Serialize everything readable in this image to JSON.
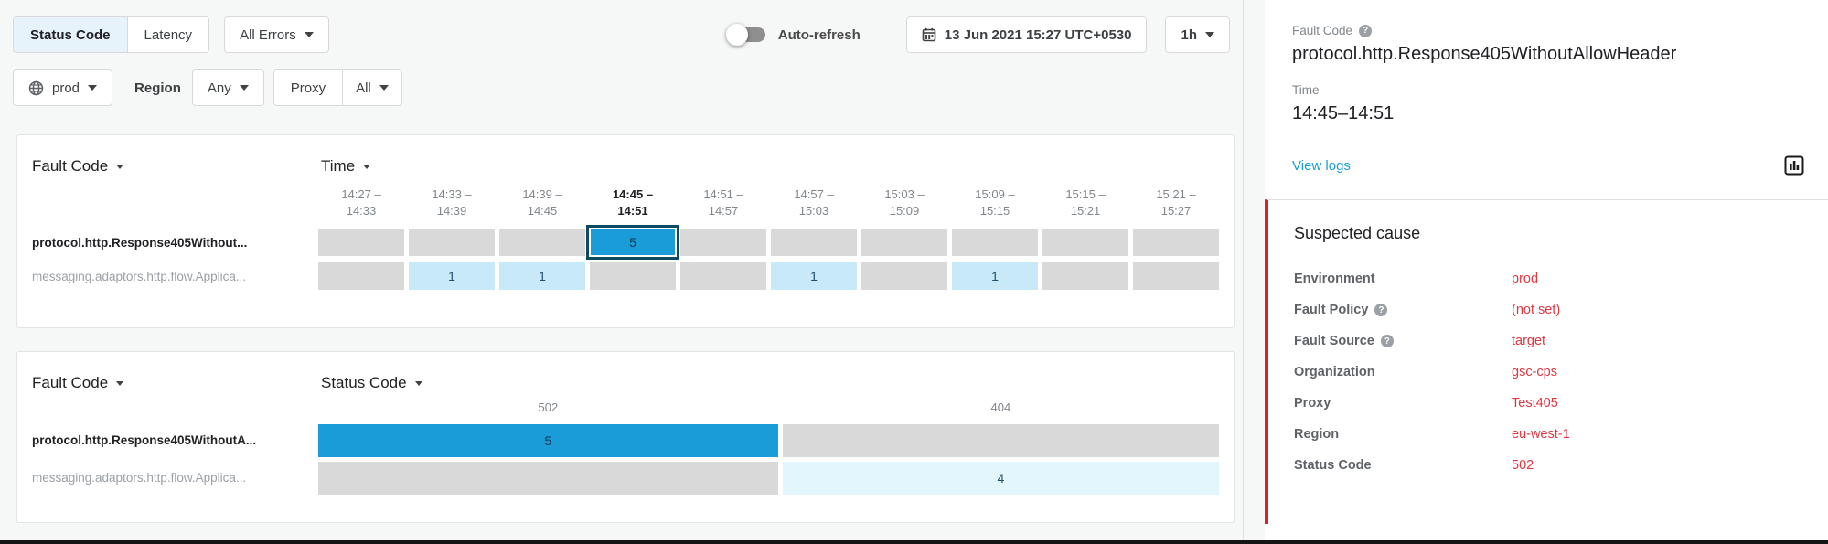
{
  "toolbar": {
    "metric_tabs": [
      {
        "label": "Status Code",
        "selected": true
      },
      {
        "label": "Latency",
        "selected": false
      }
    ],
    "errors_filter_label": "All Errors",
    "environment_value": "prod",
    "region_label": "Region",
    "region_value": "Any",
    "proxy_label": "Proxy",
    "proxy_value": "All",
    "auto_refresh_label": "Auto-refresh",
    "datetime_value": "13 Jun 2021 15:27 UTC+0530",
    "interval_value": "1h"
  },
  "detail_panel": {
    "fault_code_label": "Fault Code",
    "fault_code_value": "protocol.http.Response405WithoutAllowHeader",
    "time_label": "Time",
    "time_value": "14:45–14:51",
    "view_logs_label": "View logs",
    "suspected_cause": {
      "title": "Suspected cause",
      "rows": [
        {
          "label": "Environment",
          "help": false,
          "value": "prod"
        },
        {
          "label": "Fault Policy",
          "help": true,
          "value": "(not set)"
        },
        {
          "label": "Fault Source",
          "help": true,
          "value": "target"
        },
        {
          "label": "Organization",
          "help": false,
          "value": "gsc-cps"
        },
        {
          "label": "Proxy",
          "help": false,
          "value": "Test405"
        },
        {
          "label": "Region",
          "help": false,
          "value": "eu-west-1"
        },
        {
          "label": "Status Code",
          "help": false,
          "value": "502"
        }
      ]
    }
  },
  "panels": [
    {
      "row_dimension": "Fault Code",
      "col_dimension": "Time",
      "columns": [
        {
          "line1": "14:27 –",
          "line2": "14:33",
          "selected": false
        },
        {
          "line1": "14:33 –",
          "line2": "14:39",
          "selected": false
        },
        {
          "line1": "14:39 –",
          "line2": "14:45",
          "selected": false
        },
        {
          "line1": "14:45 –",
          "line2": "14:51",
          "selected": true
        },
        {
          "line1": "14:51 –",
          "line2": "14:57",
          "selected": false
        },
        {
          "line1": "14:57 –",
          "line2": "15:03",
          "selected": false
        },
        {
          "line1": "15:03 –",
          "line2": "15:09",
          "selected": false
        },
        {
          "line1": "15:09 –",
          "line2": "15:15",
          "selected": false
        },
        {
          "line1": "15:15 –",
          "line2": "15:21",
          "selected": false
        },
        {
          "line1": "15:21 –",
          "line2": "15:27",
          "selected": false
        }
      ],
      "rows": [
        {
          "label": "protocol.http.Response405Without...",
          "bold": true,
          "cells": [
            null,
            null,
            null,
            {
              "value": 5,
              "style": "primary",
              "selected": true
            },
            null,
            null,
            null,
            null,
            null,
            null
          ]
        },
        {
          "label": "messaging.adaptors.http.flow.Applica...",
          "bold": false,
          "cells": [
            null,
            {
              "value": 1,
              "style": "light"
            },
            {
              "value": 1,
              "style": "light"
            },
            null,
            null,
            {
              "value": 1,
              "style": "light"
            },
            null,
            {
              "value": 1,
              "style": "light"
            },
            null,
            null
          ]
        }
      ]
    },
    {
      "row_dimension": "Fault Code",
      "col_dimension": "Status Code",
      "columns": [
        {
          "label": "502"
        },
        {
          "label": "404"
        }
      ],
      "rows": [
        {
          "label": "protocol.http.Response405WithoutA...",
          "bold": true,
          "cells": [
            {
              "value": 5,
              "style": "primary"
            },
            null
          ]
        },
        {
          "label": "messaging.adaptors.http.flow.Applica...",
          "bold": false,
          "cells": [
            null,
            {
              "value": 4,
              "style": "lighter"
            }
          ]
        }
      ]
    }
  ],
  "colors": {
    "primary_blue": "#1a9cd8",
    "light_blue": "#c8e9f8",
    "lighter_blue": "#e3f6fd",
    "cell_gray": "#d9d9d9",
    "selected_border": "#0d4a63",
    "value_red": "#e2353f",
    "accent_red": "#dd2025",
    "link_blue": "#1a9ed9"
  }
}
